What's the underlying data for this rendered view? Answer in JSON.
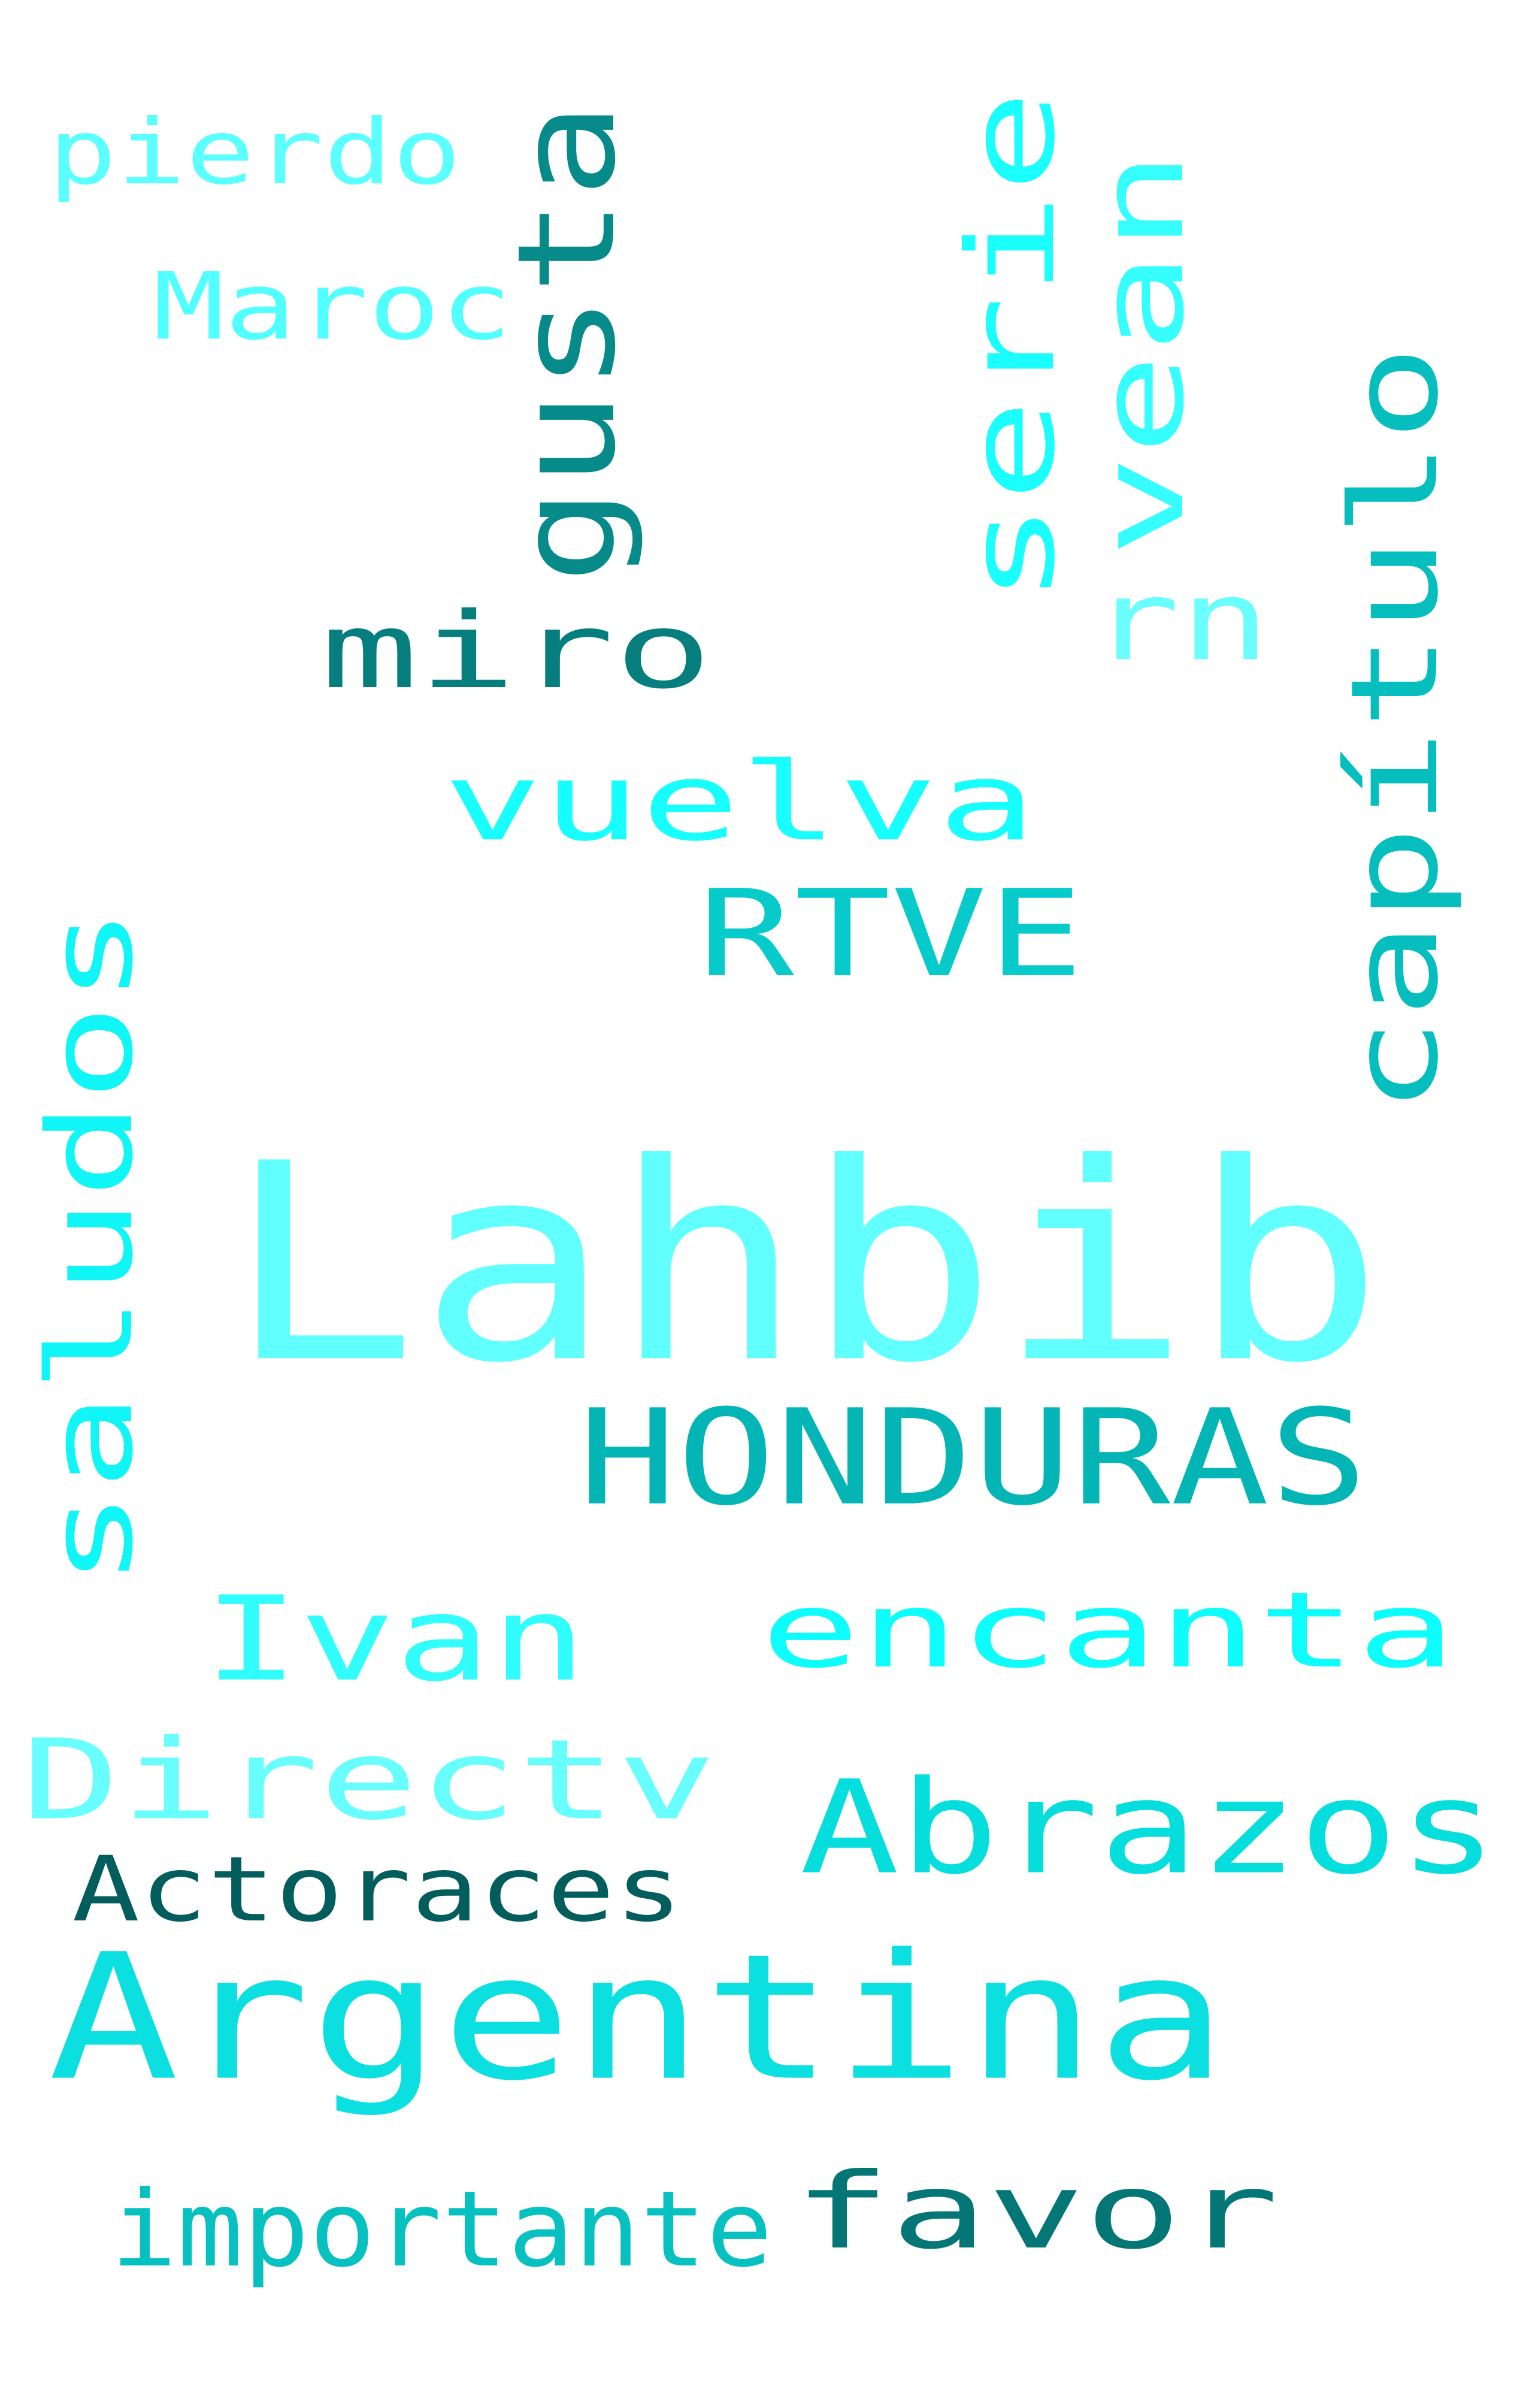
{
  "words": [
    {
      "text": "Lahbib",
      "color": "#62FFFF",
      "orientation": "horizontal"
    },
    {
      "text": "Argentina",
      "color": "#0CDFE0",
      "orientation": "horizontal"
    },
    {
      "text": "HONDURAS",
      "color": "#03B5B5",
      "orientation": "horizontal"
    },
    {
      "text": "encanta",
      "color": "#0DFDFD",
      "orientation": "horizontal"
    },
    {
      "text": "Ivan",
      "color": "#32FDFD",
      "orientation": "horizontal"
    },
    {
      "text": "Directv",
      "color": "#69FEFE",
      "orientation": "horizontal"
    },
    {
      "text": "Abrazos",
      "color": "#06DEDE",
      "orientation": "horizontal"
    },
    {
      "text": "Actoraces",
      "color": "#035D5D",
      "orientation": "horizontal"
    },
    {
      "text": "favor",
      "color": "#047676",
      "orientation": "horizontal"
    },
    {
      "text": "importante",
      "color": "#07C0C0",
      "orientation": "horizontal"
    },
    {
      "text": "vuelva",
      "color": "#18FEFE",
      "orientation": "horizontal"
    },
    {
      "text": "RTVE",
      "color": "#07CACA",
      "orientation": "horizontal"
    },
    {
      "text": "miro",
      "color": "#067E7E",
      "orientation": "horizontal"
    },
    {
      "text": "pierdo",
      "color": "#5CFFFF",
      "orientation": "horizontal"
    },
    {
      "text": "Maroc",
      "color": "#52FFFF",
      "orientation": "horizontal"
    },
    {
      "text": "rn",
      "color": "#6AFEFE",
      "orientation": "horizontal"
    },
    {
      "text": "saludos",
      "color": "#10F6F6",
      "orientation": "vertical"
    },
    {
      "text": "capítulo",
      "color": "#06BEBE",
      "orientation": "vertical"
    },
    {
      "text": "gusta",
      "color": "#068A8A",
      "orientation": "vertical"
    },
    {
      "text": "serie",
      "color": "#1BFEFE",
      "orientation": "vertical"
    },
    {
      "text": "vean",
      "color": "#37FEFE",
      "orientation": "vertical"
    }
  ]
}
